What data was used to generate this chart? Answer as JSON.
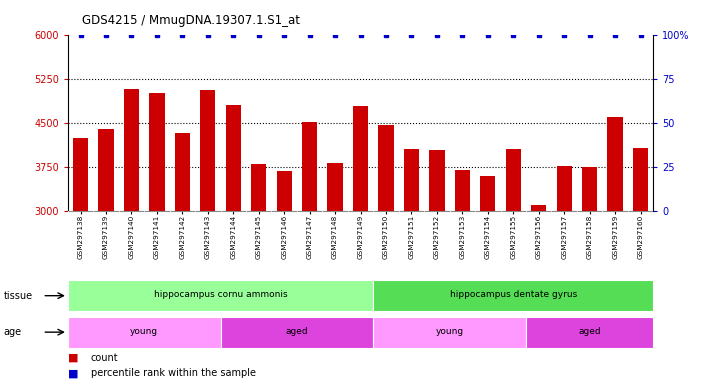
{
  "title": "GDS4215 / MmugDNA.19307.1.S1_at",
  "samples": [
    "GSM297138",
    "GSM297139",
    "GSM297140",
    "GSM297141",
    "GSM297142",
    "GSM297143",
    "GSM297144",
    "GSM297145",
    "GSM297146",
    "GSM297147",
    "GSM297148",
    "GSM297149",
    "GSM297150",
    "GSM297151",
    "GSM297152",
    "GSM297153",
    "GSM297154",
    "GSM297155",
    "GSM297156",
    "GSM297157",
    "GSM297158",
    "GSM297159",
    "GSM297160"
  ],
  "counts": [
    4250,
    4390,
    5070,
    5000,
    4320,
    5060,
    4800,
    3800,
    3690,
    4510,
    3820,
    4780,
    4460,
    4060,
    4040,
    3700,
    3590,
    4060,
    3110,
    3770,
    3750,
    4600,
    4070
  ],
  "percentiles": [
    100,
    100,
    100,
    100,
    100,
    100,
    100,
    100,
    100,
    100,
    100,
    100,
    100,
    100,
    100,
    100,
    100,
    100,
    100,
    100,
    100,
    100,
    100
  ],
  "bar_color": "#cc0000",
  "dot_color": "#0000cc",
  "ylim_left": [
    3000,
    6000
  ],
  "ylim_right": [
    0,
    100
  ],
  "yticks_left": [
    3000,
    3750,
    4500,
    5250,
    6000
  ],
  "yticks_right": [
    0,
    25,
    50,
    75,
    100
  ],
  "grid_values": [
    3750,
    4500,
    5250
  ],
  "tissue_groups": [
    {
      "label": "hippocampus cornu ammonis",
      "start": 0,
      "end": 12,
      "color": "#99ff99"
    },
    {
      "label": "hippocampus dentate gyrus",
      "start": 12,
      "end": 23,
      "color": "#55dd55"
    }
  ],
  "age_groups": [
    {
      "label": "young",
      "start": 0,
      "end": 6,
      "color": "#ff99ff"
    },
    {
      "label": "aged",
      "start": 6,
      "end": 12,
      "color": "#dd44dd"
    },
    {
      "label": "young",
      "start": 12,
      "end": 18,
      "color": "#ff99ff"
    },
    {
      "label": "aged",
      "start": 18,
      "end": 23,
      "color": "#dd44dd"
    }
  ],
  "plot_bg": "#ffffff",
  "xticklabel_bg": "#d8d8d8",
  "fig_bg": "#ffffff",
  "legend_count_color": "#cc0000",
  "legend_dot_color": "#0000cc"
}
